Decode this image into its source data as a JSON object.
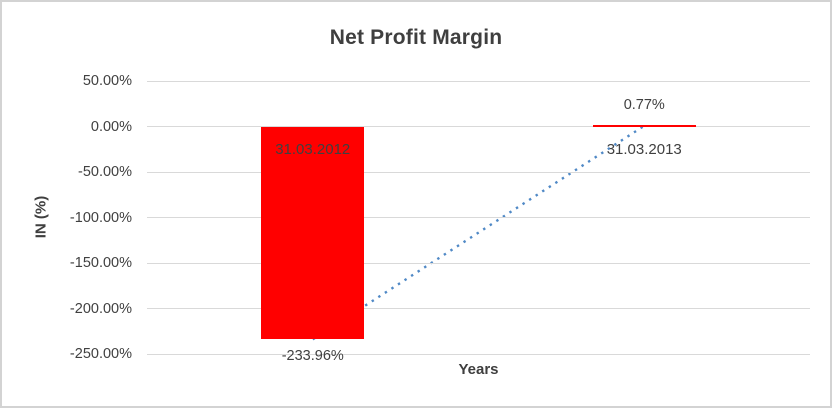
{
  "chart_data": {
    "type": "bar",
    "title": "Net Profit Margin",
    "xlabel": "Years",
    "ylabel": "IN (%)",
    "categories": [
      "31.03.2012",
      "31.03.2013"
    ],
    "values": [
      -233.96,
      0.77
    ],
    "data_labels": [
      "-233.96%",
      "0.77%"
    ],
    "ylim": [
      -250,
      50
    ],
    "yticks": [
      {
        "value": 50,
        "label": "50.00%"
      },
      {
        "value": 0,
        "label": "0.00%"
      },
      {
        "value": -50,
        "label": "-50.00%"
      },
      {
        "value": -100,
        "label": "-100.00%"
      },
      {
        "value": -150,
        "label": "-150.00%"
      },
      {
        "value": -200,
        "label": "-200.00%"
      },
      {
        "value": -250,
        "label": "-250.00%"
      }
    ],
    "grid": "horizontal",
    "legend": "none",
    "colors": {
      "bar": "#FF0000",
      "trendline": "#5089C6",
      "gridline": "#D9D9D9",
      "text": "#404040"
    },
    "trendline": {
      "type": "linear",
      "style": "dotted",
      "color": "#5089C6",
      "from": {
        "category": "31.03.2012",
        "value": -233.96
      },
      "to": {
        "category": "31.03.2013",
        "value": 0.77
      }
    }
  }
}
